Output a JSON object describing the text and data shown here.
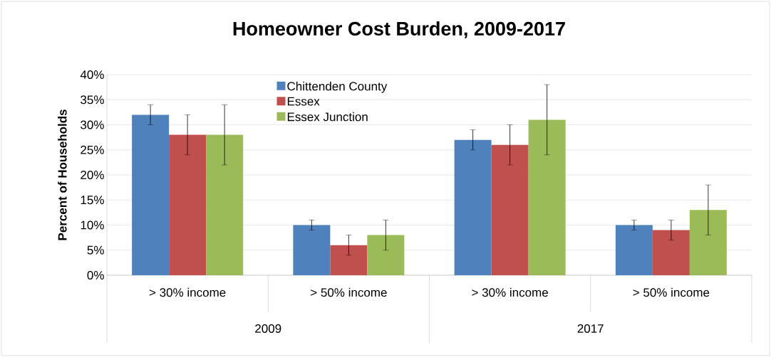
{
  "chart_data": {
    "type": "bar",
    "title": "Homeowner Cost Burden, 2009-2017",
    "ylabel": "Percent of Households",
    "categories": [
      "> 30% income",
      "> 50% income",
      "> 30% income",
      "> 50% income"
    ],
    "annotations": [
      "2009",
      "2017"
    ],
    "series": [
      {
        "name": "Chittenden County",
        "color": "#4f81bd",
        "values": [
          32,
          10,
          27,
          10
        ],
        "errors": [
          2,
          1,
          2,
          1
        ]
      },
      {
        "name": "Essex",
        "color": "#c0504d",
        "values": [
          28,
          6,
          26,
          9
        ],
        "errors": [
          4,
          2,
          4,
          2
        ]
      },
      {
        "name": "Essex Junction",
        "color": "#9bbb59",
        "values": [
          28,
          8,
          31,
          13
        ],
        "errors": [
          6,
          3,
          7,
          5
        ]
      }
    ],
    "ylim": [
      0,
      40
    ],
    "yticks": [
      {
        "value": 0,
        "label": "0%"
      },
      {
        "value": 5,
        "label": "5%"
      },
      {
        "value": 10,
        "label": "10%"
      },
      {
        "value": 15,
        "label": "15%"
      },
      {
        "value": 20,
        "label": "20%"
      },
      {
        "value": 25,
        "label": "25%"
      },
      {
        "value": 30,
        "label": "30%"
      },
      {
        "value": 35,
        "label": "35%"
      },
      {
        "value": 40,
        "label": "40%"
      }
    ],
    "grid": "y",
    "legend": "top"
  }
}
